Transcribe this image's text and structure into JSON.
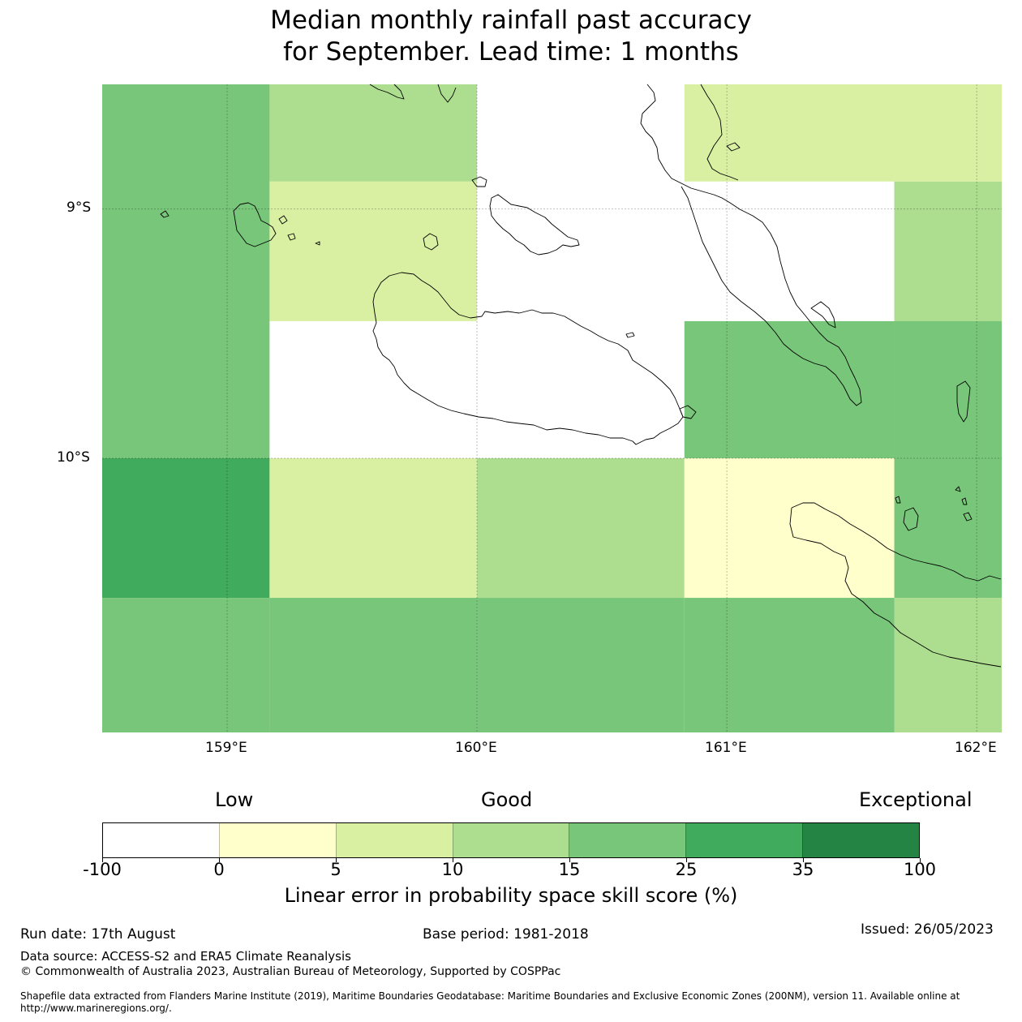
{
  "title": {
    "line1": "Median monthly rainfall past accuracy",
    "line2": "for September. Lead time: 1 months"
  },
  "map": {
    "lat_labels": [
      "9°S",
      "10°S"
    ],
    "lon_labels": [
      "159°E",
      "160°E",
      "161°E",
      "162°E"
    ],
    "extent": {
      "lon_min": 158.5,
      "lon_max": 162.1,
      "lat_north": -8.5,
      "lat_south": -11.1
    },
    "gridlines": {
      "lon": [
        159,
        160,
        161,
        162
      ],
      "lat": [
        -9,
        -10
      ]
    },
    "cells": [
      {
        "lon": [
          158.5,
          159.17
        ],
        "lat": [
          -8.5,
          -10.0
        ],
        "level": 4
      },
      {
        "lon": [
          158.5,
          159.17
        ],
        "lat": [
          -10.0,
          -10.56
        ],
        "level": 5
      },
      {
        "lon": [
          158.5,
          159.17
        ],
        "lat": [
          -10.56,
          -11.1
        ],
        "level": 4
      },
      {
        "lon": [
          159.17,
          160.0
        ],
        "lat": [
          -8.5,
          -8.89
        ],
        "level": 3
      },
      {
        "lon": [
          159.17,
          160.0
        ],
        "lat": [
          -8.89,
          -9.45
        ],
        "level": 2
      },
      {
        "lon": [
          159.17,
          160.0
        ],
        "lat": [
          -9.45,
          -10.0
        ],
        "level": 0
      },
      {
        "lon": [
          159.17,
          160.0
        ],
        "lat": [
          -10.0,
          -10.56
        ],
        "level": 2
      },
      {
        "lon": [
          159.17,
          160.0
        ],
        "lat": [
          -10.56,
          -11.1
        ],
        "level": 4
      },
      {
        "lon": [
          160.0,
          160.83
        ],
        "lat": [
          -8.5,
          -10.0
        ],
        "level": 0
      },
      {
        "lon": [
          160.0,
          160.83
        ],
        "lat": [
          -10.0,
          -10.56
        ],
        "level": 3
      },
      {
        "lon": [
          160.0,
          160.83
        ],
        "lat": [
          -10.56,
          -11.1
        ],
        "level": 4
      },
      {
        "lon": [
          160.83,
          161.67
        ],
        "lat": [
          -8.5,
          -8.89
        ],
        "level": 2
      },
      {
        "lon": [
          160.83,
          161.67
        ],
        "lat": [
          -8.89,
          -9.45
        ],
        "level": 0
      },
      {
        "lon": [
          160.83,
          161.67
        ],
        "lat": [
          -9.45,
          -10.0
        ],
        "level": 4
      },
      {
        "lon": [
          160.83,
          161.67
        ],
        "lat": [
          -10.0,
          -10.56
        ],
        "level": 1
      },
      {
        "lon": [
          160.83,
          161.67
        ],
        "lat": [
          -10.56,
          -11.1
        ],
        "level": 4
      },
      {
        "lon": [
          161.67,
          162.1
        ],
        "lat": [
          -8.5,
          -8.89
        ],
        "level": 2
      },
      {
        "lon": [
          161.67,
          162.1
        ],
        "lat": [
          -8.89,
          -9.45
        ],
        "level": 3
      },
      {
        "lon": [
          161.67,
          162.1
        ],
        "lat": [
          -9.45,
          -10.56
        ],
        "level": 4
      },
      {
        "lon": [
          161.67,
          162.1
        ],
        "lat": [
          -10.56,
          -11.1
        ],
        "level": 3
      }
    ]
  },
  "legend": {
    "categories": [
      "Low",
      "Good",
      "Exceptional"
    ],
    "colors": [
      "#ffffff",
      "#ffffcc",
      "#d9f0a3",
      "#addd8e",
      "#78c679",
      "#41ab5d",
      "#238443"
    ],
    "ticks": [
      "-100",
      "0",
      "5",
      "10",
      "15",
      "25",
      "35",
      "100"
    ],
    "label": "Linear error in probability space skill score (%)"
  },
  "footer": {
    "run_date": "Run date: 17th August",
    "base_period": "Base period: 1981-2018",
    "issued": "Issued: 26/05/2023",
    "data_source": "Data source: ACCESS-S2 and ERA5 Climate Reanalysis",
    "copyright": "© Commonwealth of Australia 2023, Australian Bureau of Meteorology, Supported by COSPPac",
    "shapefile_line1": "Shapefile data extracted from Flanders Marine Institute (2019), Maritime Boundaries Geodatabase: Maritime Boundaries and Exclusive Economic Zones (200NM), version 11. Available online at",
    "shapefile_line2": "http://www.marineregions.org/."
  }
}
